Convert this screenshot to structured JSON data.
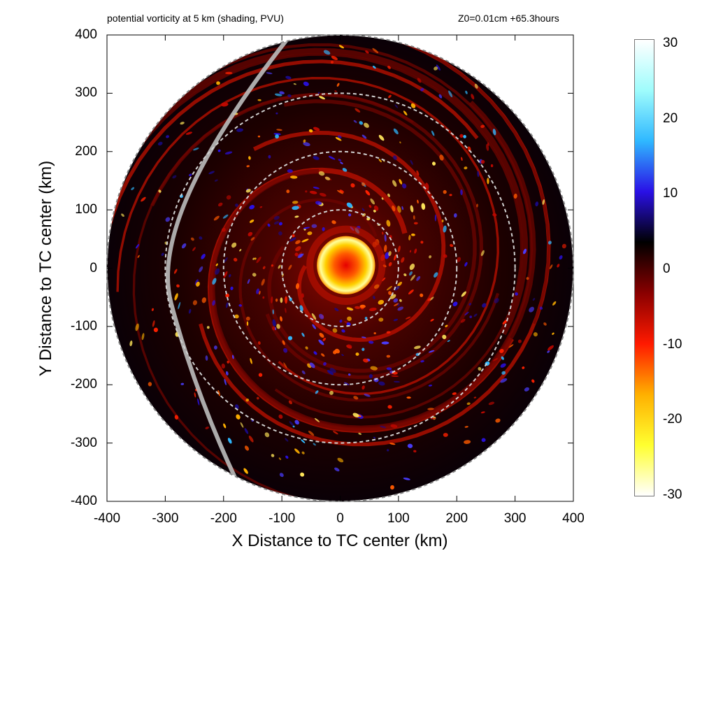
{
  "title": "potential vorticity at 5 km (shading, PVU)",
  "run_info": "Z0=0.01cm  +65.3hours",
  "chart_data": {
    "type": "heatmap",
    "title": "potential vorticity at 5 km (shading, PVU)",
    "annotation": "Z0=0.01cm  +65.3hours",
    "xlabel": "X Distance to TC center (km)",
    "ylabel": "Y Distance to TC center (km)",
    "xlim": [
      -400,
      400
    ],
    "ylim": [
      -400,
      400
    ],
    "xticks": [
      "-400",
      "-300",
      "-200",
      "-100",
      "0",
      "100",
      "200",
      "300",
      "400"
    ],
    "yticks": [
      "400",
      "300",
      "200",
      "100",
      "0",
      "-100",
      "-200",
      "-300",
      "-400"
    ],
    "colorbar": {
      "ticks": [
        "30",
        "20",
        "10",
        "0",
        "-10",
        "-20",
        "-30"
      ],
      "range": [
        -30,
        30
      ],
      "colors": [
        "#ffffff",
        "#9ffcfc",
        "#2fb8ff",
        "#2a10e6",
        "#000000",
        "#8a0000",
        "#ff1a00",
        "#ffb000",
        "#ffff30",
        "#ffffff"
      ]
    },
    "range_rings_km": [
      100,
      200,
      300,
      400
    ],
    "inner_core": {
      "center_km": [
        10,
        5
      ],
      "radius_km": 50,
      "peak_pvu": 30
    },
    "grid": false
  }
}
